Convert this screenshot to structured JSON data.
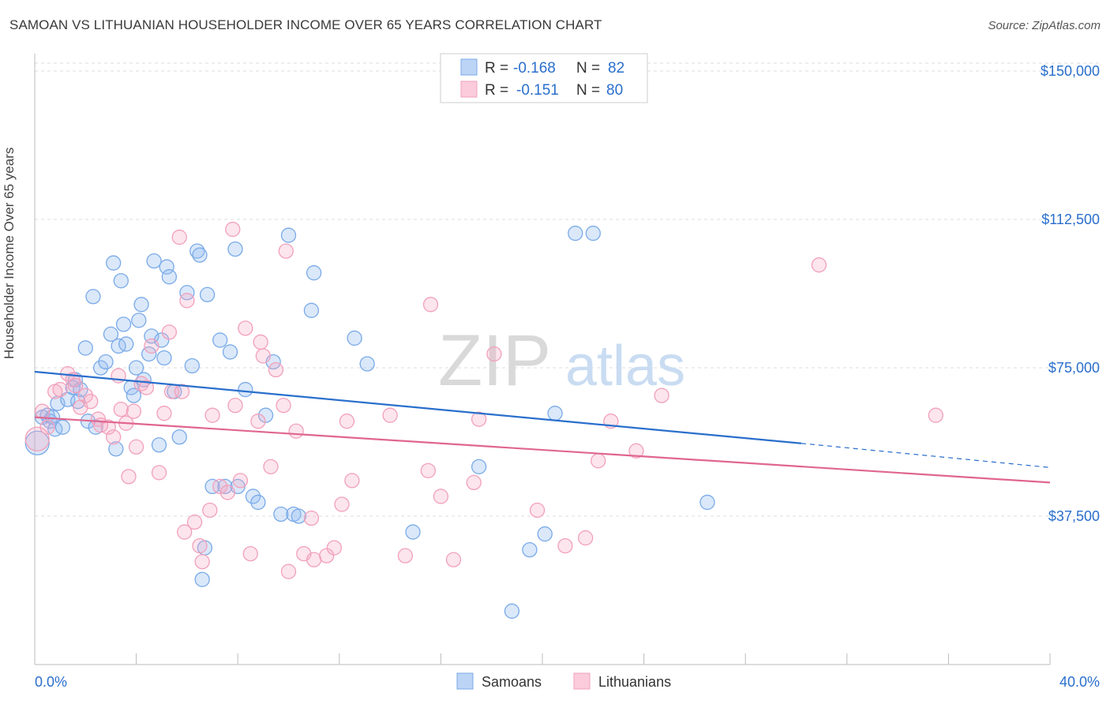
{
  "title": "SAMOAN VS LITHUANIAN HOUSEHOLDER INCOME OVER 65 YEARS CORRELATION CHART",
  "source": "Source: ZipAtlas.com",
  "watermark": {
    "zip": "ZIP",
    "atlas": "atlas"
  },
  "legend_stats": [
    {
      "r_label": "R =",
      "r_value": "-0.168",
      "n_label": "N =",
      "n_value": "82",
      "color": "#7aaae8"
    },
    {
      "r_label": "R =",
      "r_value": "-0.151",
      "n_label": "N =",
      "n_value": "80",
      "color": "#f2a0bb"
    }
  ],
  "chart_data": {
    "type": "scatter",
    "title": "SAMOAN VS LITHUANIAN HOUSEHOLDER INCOME OVER 65 YEARS CORRELATION CHART",
    "xlabel": "",
    "ylabel": "Householder Income Over 65 years",
    "xlim": [
      0,
      40
    ],
    "ylim": [
      0,
      152000
    ],
    "x_tick_labels": [
      "0.0%",
      "40.0%"
    ],
    "y_ticks": [
      37500,
      75000,
      112500,
      150000
    ],
    "y_tick_labels": [
      "$37,500",
      "$75,000",
      "$112,500",
      "$150,000"
    ],
    "grid": "horizontal dashed",
    "legend": "bottom-center",
    "series": [
      {
        "name": "Samoans",
        "color": "#7aaae8",
        "line_color": "#2a6fcc",
        "trend": {
          "x": [
            0,
            30.2
          ],
          "y": [
            74000,
            55900
          ],
          "dash_to_x": 40,
          "dash_to_y": 49800
        },
        "points": [
          [
            0.1,
            56000
          ],
          [
            0.3,
            62500
          ],
          [
            0.5,
            63000
          ],
          [
            0.6,
            61500
          ],
          [
            0.7,
            62500
          ],
          [
            0.8,
            59500
          ],
          [
            0.9,
            66000
          ],
          [
            1.1,
            60000
          ],
          [
            1.3,
            67000
          ],
          [
            1.5,
            70000
          ],
          [
            1.6,
            72000
          ],
          [
            1.7,
            66500
          ],
          [
            1.8,
            69500
          ],
          [
            2.0,
            80000
          ],
          [
            2.1,
            61500
          ],
          [
            2.3,
            93000
          ],
          [
            2.4,
            60000
          ],
          [
            2.6,
            75000
          ],
          [
            2.8,
            76500
          ],
          [
            3.0,
            83500
          ],
          [
            3.1,
            101500
          ],
          [
            3.2,
            54500
          ],
          [
            3.3,
            80500
          ],
          [
            3.4,
            97000
          ],
          [
            3.5,
            86000
          ],
          [
            3.6,
            81000
          ],
          [
            3.8,
            70000
          ],
          [
            3.9,
            68000
          ],
          [
            4.0,
            75000
          ],
          [
            4.1,
            87000
          ],
          [
            4.2,
            91000
          ],
          [
            4.3,
            72000
          ],
          [
            4.5,
            78500
          ],
          [
            4.6,
            83000
          ],
          [
            4.7,
            102000
          ],
          [
            4.9,
            55500
          ],
          [
            5.0,
            82000
          ],
          [
            5.1,
            77500
          ],
          [
            5.2,
            100500
          ],
          [
            5.3,
            98000
          ],
          [
            5.5,
            69000
          ],
          [
            5.7,
            57500
          ],
          [
            6.0,
            94000
          ],
          [
            6.2,
            75500
          ],
          [
            6.4,
            104500
          ],
          [
            6.5,
            103500
          ],
          [
            6.7,
            29500
          ],
          [
            6.8,
            93500
          ],
          [
            6.6,
            21500
          ],
          [
            7.0,
            45000
          ],
          [
            7.3,
            82000
          ],
          [
            7.5,
            45000
          ],
          [
            7.7,
            79000
          ],
          [
            7.9,
            105000
          ],
          [
            8.0,
            45000
          ],
          [
            8.3,
            69500
          ],
          [
            8.6,
            42500
          ],
          [
            8.8,
            41000
          ],
          [
            9.1,
            63000
          ],
          [
            9.4,
            76500
          ],
          [
            9.7,
            38000
          ],
          [
            10.0,
            108500
          ],
          [
            10.2,
            38000
          ],
          [
            10.4,
            37500
          ],
          [
            10.9,
            89500
          ],
          [
            11.0,
            99000
          ],
          [
            12.6,
            82500
          ],
          [
            13.1,
            76000
          ],
          [
            14.9,
            33500
          ],
          [
            17.5,
            50000
          ],
          [
            18.8,
            13500
          ],
          [
            19.5,
            29000
          ],
          [
            20.1,
            33000
          ],
          [
            20.5,
            63500
          ],
          [
            21.3,
            109000
          ],
          [
            22.0,
            109000
          ],
          [
            26.5,
            41000
          ]
        ]
      },
      {
        "name": "Lithuanians",
        "color": "#f2a0bb",
        "line_color": "#e06690",
        "trend": {
          "x": [
            0,
            40
          ],
          "y": [
            62500,
            46000
          ]
        },
        "points": [
          [
            0.1,
            57000
          ],
          [
            0.3,
            64000
          ],
          [
            0.5,
            60000
          ],
          [
            0.8,
            69000
          ],
          [
            1.0,
            69500
          ],
          [
            1.3,
            73500
          ],
          [
            1.5,
            72000
          ],
          [
            1.6,
            70500
          ],
          [
            1.8,
            65000
          ],
          [
            2.0,
            68000
          ],
          [
            2.2,
            66500
          ],
          [
            2.5,
            62000
          ],
          [
            2.6,
            60500
          ],
          [
            2.9,
            60000
          ],
          [
            3.1,
            57500
          ],
          [
            3.3,
            73000
          ],
          [
            3.4,
            64500
          ],
          [
            3.6,
            61000
          ],
          [
            3.7,
            47500
          ],
          [
            3.9,
            64000
          ],
          [
            4.0,
            55000
          ],
          [
            4.2,
            71000
          ],
          [
            4.4,
            70000
          ],
          [
            4.6,
            80500
          ],
          [
            4.9,
            48500
          ],
          [
            5.1,
            63500
          ],
          [
            5.3,
            84000
          ],
          [
            5.4,
            69000
          ],
          [
            5.7,
            108000
          ],
          [
            5.8,
            69000
          ],
          [
            5.9,
            33500
          ],
          [
            6.0,
            92000
          ],
          [
            6.3,
            36000
          ],
          [
            6.5,
            30000
          ],
          [
            6.6,
            26000
          ],
          [
            6.9,
            39000
          ],
          [
            7.0,
            63000
          ],
          [
            7.3,
            45000
          ],
          [
            7.6,
            43500
          ],
          [
            7.8,
            110000
          ],
          [
            7.9,
            65500
          ],
          [
            8.1,
            46500
          ],
          [
            8.3,
            85000
          ],
          [
            8.5,
            28000
          ],
          [
            8.8,
            61500
          ],
          [
            8.9,
            81500
          ],
          [
            9.0,
            78000
          ],
          [
            9.3,
            50000
          ],
          [
            9.5,
            74500
          ],
          [
            9.8,
            65500
          ],
          [
            9.9,
            104500
          ],
          [
            10.0,
            23500
          ],
          [
            10.3,
            59000
          ],
          [
            10.6,
            28000
          ],
          [
            10.9,
            37000
          ],
          [
            11.0,
            26500
          ],
          [
            11.5,
            27500
          ],
          [
            11.8,
            29500
          ],
          [
            12.1,
            40500
          ],
          [
            12.3,
            61500
          ],
          [
            12.5,
            46500
          ],
          [
            14.0,
            63000
          ],
          [
            14.6,
            27500
          ],
          [
            15.5,
            49000
          ],
          [
            15.6,
            91000
          ],
          [
            16.0,
            42500
          ],
          [
            16.5,
            26500
          ],
          [
            17.3,
            46000
          ],
          [
            17.5,
            62000
          ],
          [
            18.1,
            78500
          ],
          [
            19.8,
            39000
          ],
          [
            20.9,
            30000
          ],
          [
            21.7,
            32000
          ],
          [
            22.2,
            51500
          ],
          [
            22.7,
            61500
          ],
          [
            23.7,
            54000
          ],
          [
            24.7,
            68000
          ],
          [
            30.9,
            101000
          ],
          [
            35.5,
            63000
          ]
        ]
      }
    ]
  },
  "bottom_legend": [
    {
      "label": "Samoans",
      "color": "#7aaae8"
    },
    {
      "label": "Lithuanians",
      "color": "#f2a0bb"
    }
  ]
}
